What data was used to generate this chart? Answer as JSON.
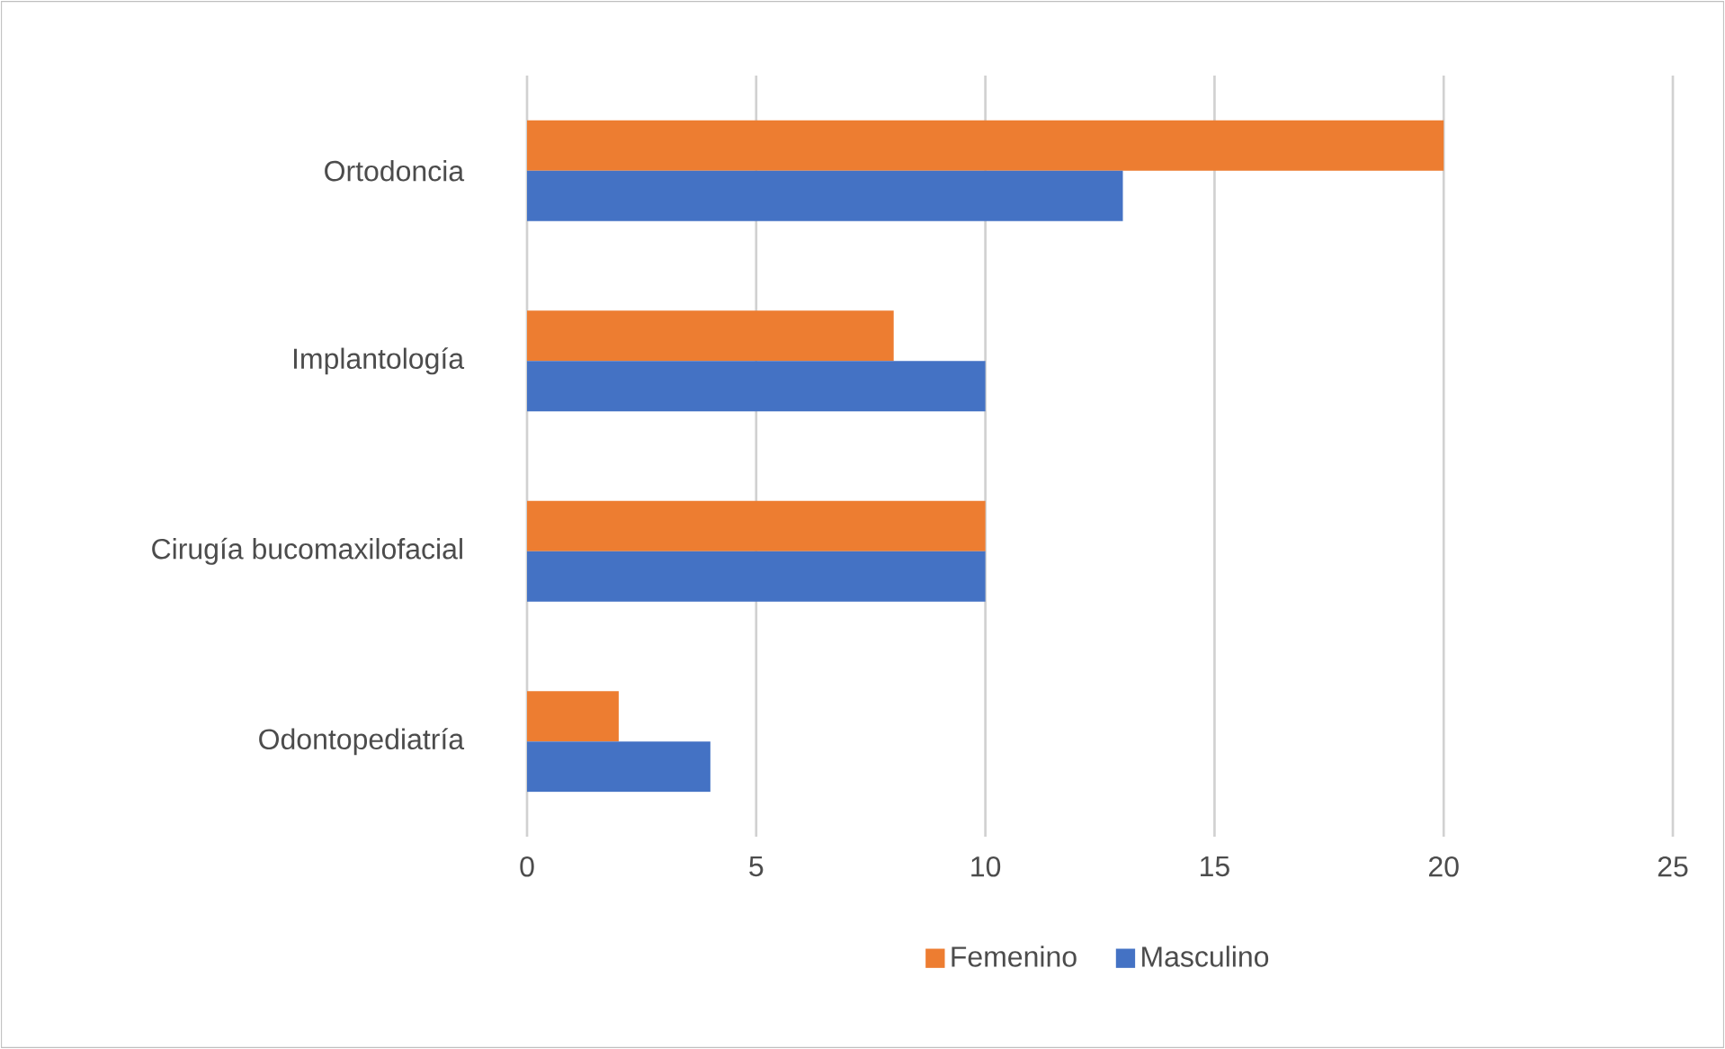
{
  "chart_data": {
    "type": "bar",
    "orientation": "horizontal",
    "categories": [
      "Ortodoncia",
      "Implantología",
      "Cirugía bucomaxilofacial",
      "Odontopediatría"
    ],
    "series": [
      {
        "name": "Femenino",
        "color": "#ed7d31",
        "values": [
          20,
          8,
          10,
          2
        ]
      },
      {
        "name": "Masculino",
        "color": "#4472c4",
        "values": [
          13,
          10,
          10,
          4
        ]
      }
    ],
    "xlim": [
      0,
      25
    ],
    "xticks": [
      0,
      5,
      10,
      15,
      20,
      25
    ],
    "grid": "x",
    "legend": "bottom"
  }
}
